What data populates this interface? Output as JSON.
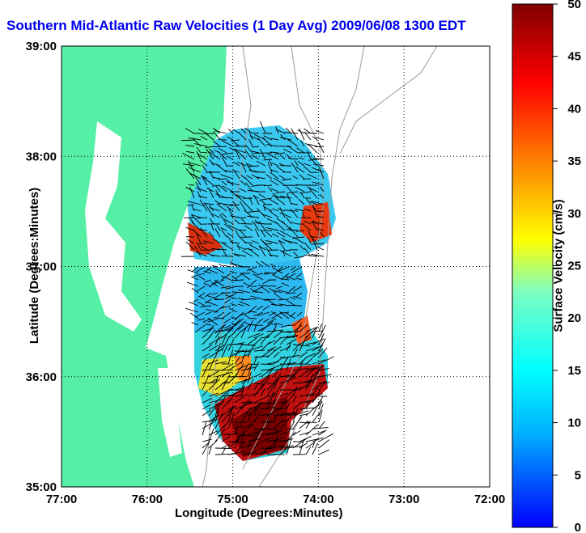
{
  "title": "Southern Mid-Atlantic Raw Velocities (1 Day Avg) 2009/06/08 1300 EDT",
  "xlabel": "Longitude (Degrees:Minutes)",
  "ylabel": "Latitude (Degrees:Minutes)",
  "colorbar": {
    "label": "Surface Velocity (cm/s)",
    "min": 0,
    "max": 50,
    "ticks": [
      "0",
      "5",
      "10",
      "15",
      "20",
      "25",
      "30",
      "35",
      "40",
      "45",
      "50"
    ]
  },
  "map": {
    "lon_range": [
      -77,
      -72
    ],
    "lat_range": [
      35,
      39
    ],
    "x_ticks": [
      "77:00",
      "76:00",
      "75:00",
      "74:00",
      "73:00",
      "72:00"
    ],
    "y_ticks": [
      "35:00",
      "36:00",
      "37:00",
      "38:00",
      "39:00"
    ],
    "grid": true,
    "land_color": "#55f0a6",
    "isobath_color": "#9b9b9b"
  }
}
